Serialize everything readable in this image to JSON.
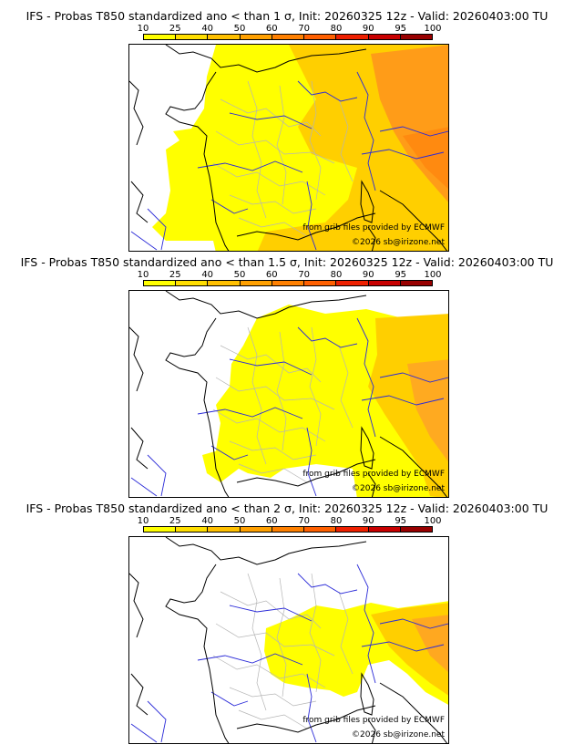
{
  "colors": {
    "scale": [
      "#ffff00",
      "#ffde00",
      "#ffc000",
      "#ffa000",
      "#ff8000",
      "#ff6000",
      "#ee2000",
      "#c80000",
      "#980000",
      "#600000"
    ],
    "coast": "#000000",
    "river": "#2b2bd8",
    "border": "#b5b5b5",
    "prob_low": "#ffff00",
    "prob_mid": "#ffce00",
    "prob_high": "#ff9a10"
  },
  "scale_labels": [
    "10",
    "25",
    "40",
    "50",
    "60",
    "70",
    "80",
    "90",
    "95",
    "100"
  ],
  "panels": [
    {
      "title": "IFS - Probas T850  standardized ano < than 1 σ, Init: 20260325 12z - Valid: 20260403:00 TU",
      "threshold_sigma": 1,
      "source": "from grib files provided by ECMWF",
      "copyright": "©2026 sb@irizone.net"
    },
    {
      "title": "IFS - Probas T850  standardized ano < than 1.5 σ, Init: 20260325 12z - Valid: 20260403:00 TU",
      "threshold_sigma": 1.5,
      "source": "from grib files provided by ECMWF",
      "copyright": "©2026 sb@irizone.net"
    },
    {
      "title": "IFS - Probas T850  standardized ano < than 2 σ, Init: 20260325 12z - Valid: 20260403:00 TU",
      "threshold_sigma": 2,
      "source": "from grib files provided by ECMWF",
      "copyright": "©2026 sb@irizone.net"
    }
  ]
}
